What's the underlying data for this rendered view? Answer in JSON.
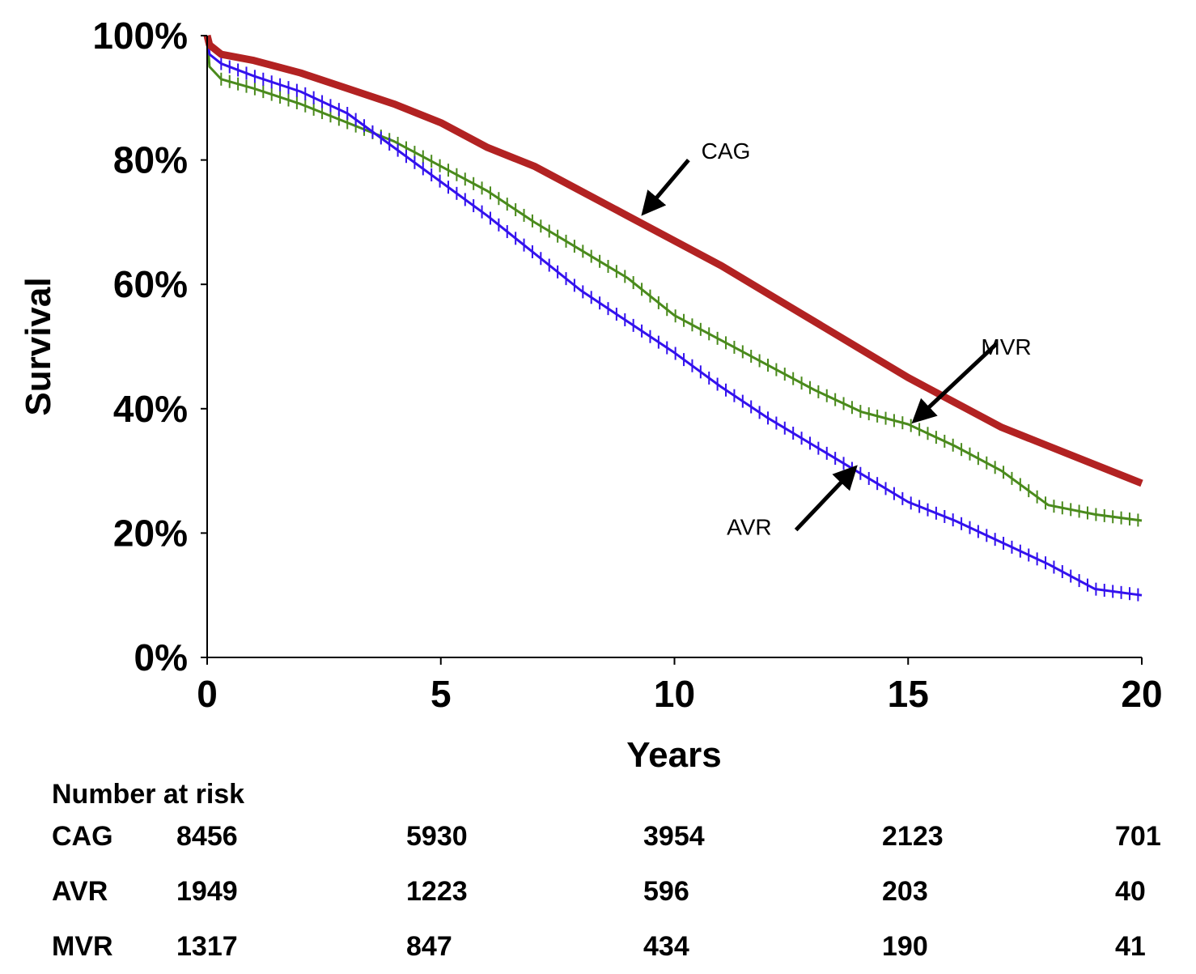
{
  "chart_data": {
    "type": "line",
    "xlabel": "Years",
    "ylabel": "Survival",
    "xlim": [
      0,
      20
    ],
    "ylim": [
      0,
      100
    ],
    "x_ticks": [
      0,
      5,
      10,
      15,
      20
    ],
    "x_tick_labels": [
      "0",
      "5",
      "10",
      "15",
      "20"
    ],
    "y_ticks": [
      0,
      20,
      40,
      60,
      80,
      100
    ],
    "y_tick_labels": [
      "0%",
      "20%",
      "40%",
      "60%",
      "80%",
      "100%"
    ],
    "grid": false,
    "legend": "none",
    "series": [
      {
        "name": "CAG",
        "color": "#b22222",
        "x": [
          0,
          0.05,
          0.3,
          1,
          2,
          3,
          4,
          5,
          6,
          7,
          8,
          9,
          10,
          11,
          12,
          13,
          14,
          15,
          16,
          17,
          18,
          19,
          20
        ],
        "values": [
          100,
          98.5,
          97,
          96,
          94,
          91.5,
          89,
          86,
          82,
          79,
          75,
          71,
          67,
          63,
          58.5,
          54,
          49.5,
          45,
          41,
          37,
          34,
          31,
          28
        ]
      },
      {
        "name": "AVR",
        "color": "#3311ee",
        "x": [
          0,
          0.05,
          0.3,
          1,
          2,
          3,
          4,
          5,
          6,
          7,
          8,
          9,
          10,
          11,
          12,
          13,
          14,
          15,
          16,
          17,
          18,
          19,
          20
        ],
        "values": [
          100,
          97,
          95.5,
          93.5,
          91,
          87.5,
          82,
          76.5,
          71,
          65,
          59,
          54,
          49,
          43.5,
          38.5,
          34,
          29.5,
          25,
          22,
          18.5,
          15,
          11,
          10
        ]
      },
      {
        "name": "MVR",
        "color": "#4a8a1c",
        "x": [
          0,
          0.05,
          0.3,
          1,
          2,
          3,
          4,
          5,
          6,
          7,
          8,
          9,
          10,
          11,
          12,
          13,
          14,
          15,
          16,
          17,
          18,
          19,
          20
        ],
        "values": [
          100,
          95,
          93,
          91.5,
          89,
          86,
          83,
          79,
          75,
          70,
          65.5,
          61,
          55,
          51,
          47,
          43,
          39.5,
          37.5,
          34,
          30,
          24.5,
          23,
          22
        ]
      }
    ],
    "annotations": [
      {
        "text": "CAG",
        "x": 11.1,
        "y": 81.5,
        "arrow_from": [
          10.3,
          80
        ],
        "arrow_to": [
          9.4,
          72
        ]
      },
      {
        "text": "MVR",
        "x": 17.1,
        "y": 50,
        "arrow_from": [
          16.9,
          50.5
        ],
        "arrow_to": [
          15.2,
          38.5
        ]
      },
      {
        "text": "AVR",
        "x": 11.6,
        "y": 21,
        "arrow_from": [
          12.6,
          20.5
        ],
        "arrow_to": [
          13.8,
          30
        ]
      }
    ],
    "risk_table": {
      "title": "Number at risk",
      "rows": [
        {
          "label": "CAG",
          "values": [
            "8456",
            "5930",
            "3954",
            "2123",
            "701"
          ]
        },
        {
          "label": "AVR",
          "values": [
            "1949",
            "1223",
            "596",
            "203",
            "40"
          ]
        },
        {
          "label": "MVR",
          "values": [
            "1317",
            "847",
            "434",
            "190",
            "41"
          ]
        }
      ]
    }
  }
}
